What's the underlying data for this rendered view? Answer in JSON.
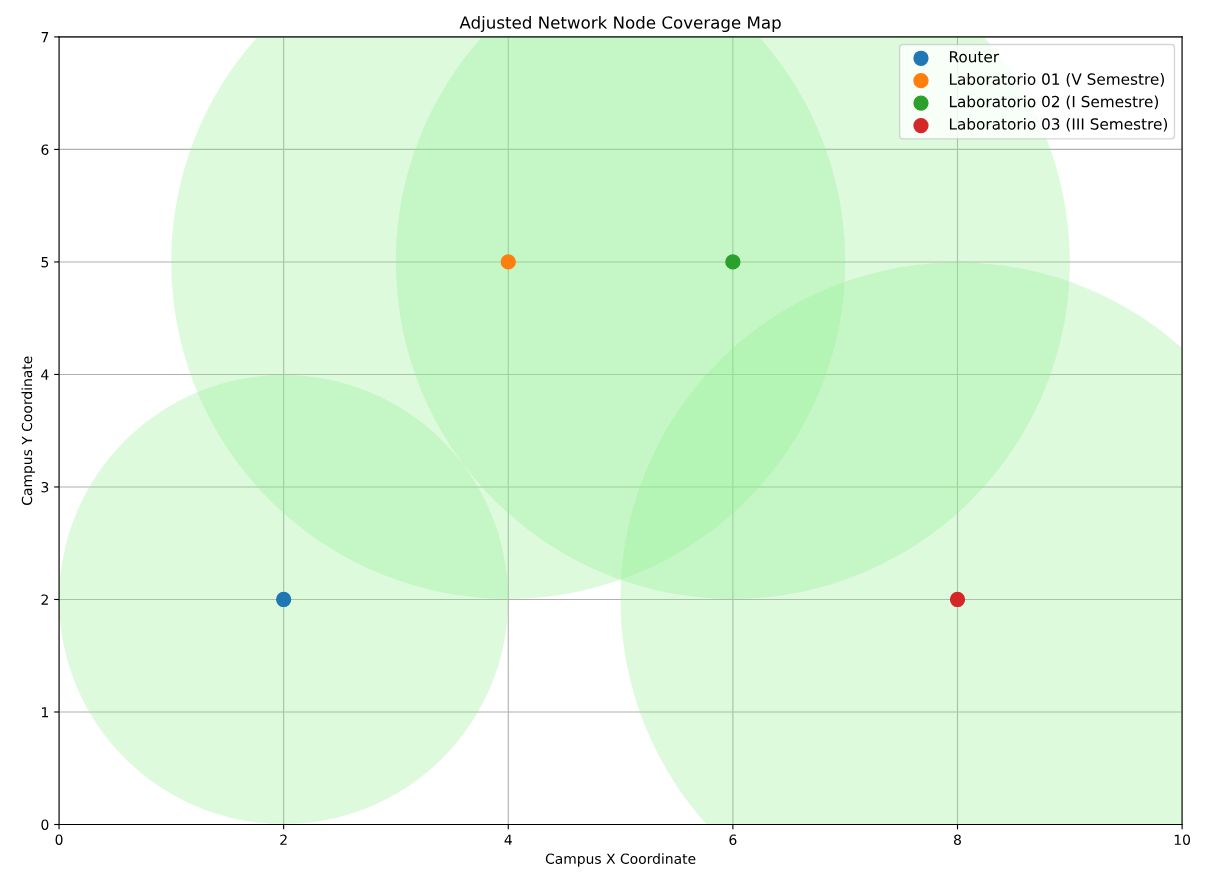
{
  "chart_data": {
    "type": "scatter",
    "title": "Adjusted Network Node Coverage Map",
    "xlabel": "Campus X Coordinate",
    "ylabel": "Campus Y Coordinate",
    "xlim": [
      0,
      10
    ],
    "ylim": [
      0,
      7
    ],
    "xticks": [
      0,
      2,
      4,
      6,
      8,
      10
    ],
    "yticks": [
      0,
      1,
      2,
      3,
      4,
      5,
      6,
      7
    ],
    "grid": true,
    "legend": "top right",
    "marker": "circle",
    "series": [
      {
        "type": "bubble",
        "color": "#90ee90",
        "x": [
          2,
          4,
          6,
          8
        ],
        "values": [
          2,
          5,
          5,
          2
        ],
        "sizes": [
          0.444,
          1,
          1,
          1
        ]
      },
      {
        "name": "Router",
        "color": "#1f77b4",
        "x": [
          2
        ],
        "values": [
          2
        ]
      },
      {
        "name": "Laboratorio 01 (V Semestre)",
        "color": "#ff7f0e",
        "x": [
          4
        ],
        "values": [
          5
        ]
      },
      {
        "name": "Laboratorio 02 (I Semestre)",
        "color": "#2ca02c",
        "x": [
          6
        ],
        "values": [
          5
        ]
      },
      {
        "name": "Laboratorio 03 (III Semestre)",
        "color": "#d62728",
        "x": [
          8
        ],
        "values": [
          2
        ]
      }
    ]
  }
}
